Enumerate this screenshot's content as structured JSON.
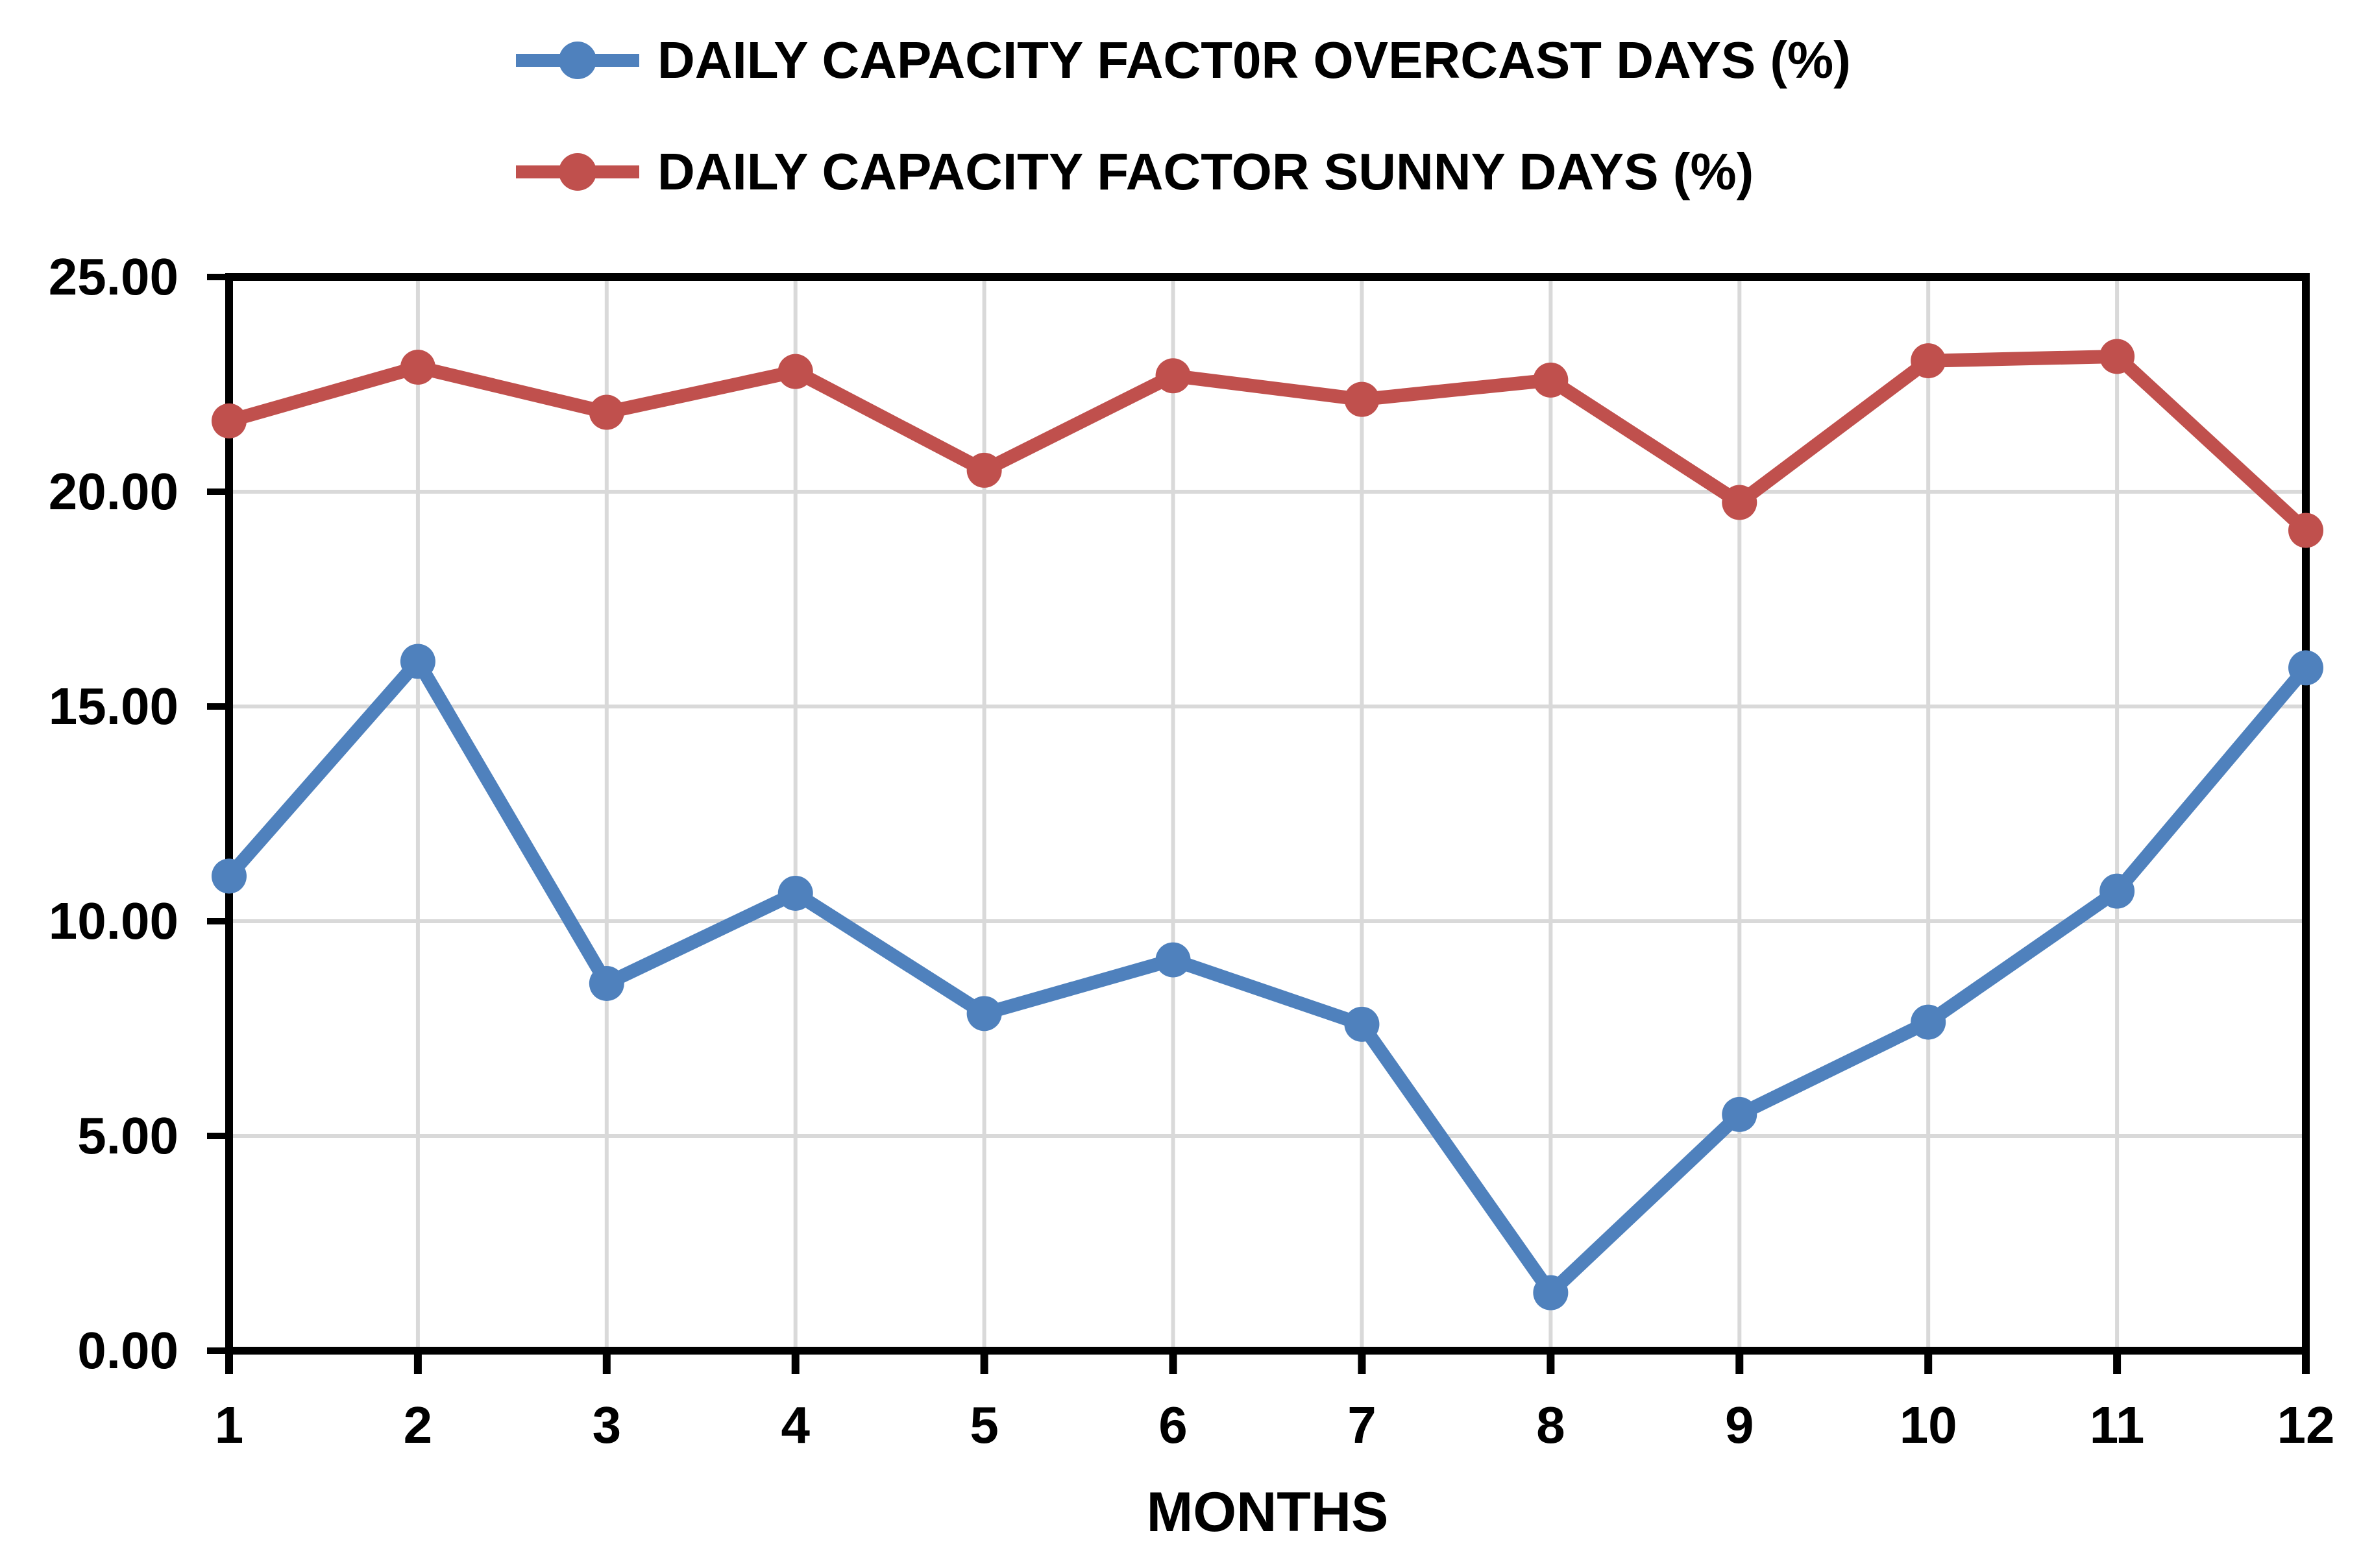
{
  "legend": {
    "items": [
      {
        "label": "DAILY CAPACITY FACT0R OVERCAST DAYS (%)",
        "color": "#4F81BD"
      },
      {
        "label": "DAILY CAPACITY FACTOR SUNNY DAYS (%)",
        "color": "#C0504D"
      }
    ]
  },
  "chart_data": {
    "type": "line",
    "title": "",
    "xlabel": "MONTHS",
    "ylabel": "",
    "x": [
      1,
      2,
      3,
      4,
      5,
      6,
      7,
      8,
      9,
      10,
      11,
      12
    ],
    "xtick_labels": [
      "1",
      "2",
      "3",
      "4",
      "5",
      "6",
      "7",
      "8",
      "9",
      "10",
      "11",
      "12"
    ],
    "ylim": [
      0,
      25
    ],
    "ytick_values": [
      0,
      5,
      10,
      15,
      20,
      25
    ],
    "ytick_labels": [
      "0.00",
      "5.00",
      "10.00",
      "15.00",
      "20.00",
      "25.00"
    ],
    "grid": true,
    "legend_position": "top",
    "series": [
      {
        "name": "DAILY CAPACITY FACT0R OVERCAST DAYS (%)",
        "color": "#4F81BD",
        "values": [
          11.05,
          16.05,
          8.55,
          10.65,
          7.85,
          9.1,
          7.6,
          1.35,
          5.5,
          7.65,
          10.7,
          15.9
        ]
      },
      {
        "name": "DAILY CAPACITY FACTOR SUNNY DAYS (%)",
        "color": "#C0504D",
        "values": [
          21.65,
          22.9,
          21.85,
          22.8,
          20.5,
          22.7,
          22.15,
          22.6,
          19.75,
          23.05,
          23.15,
          19.1
        ]
      }
    ],
    "colors": {
      "axis": "#000000",
      "gridline": "#D9D9D9",
      "background": "#FFFFFF",
      "tick_label": "#000000"
    }
  }
}
